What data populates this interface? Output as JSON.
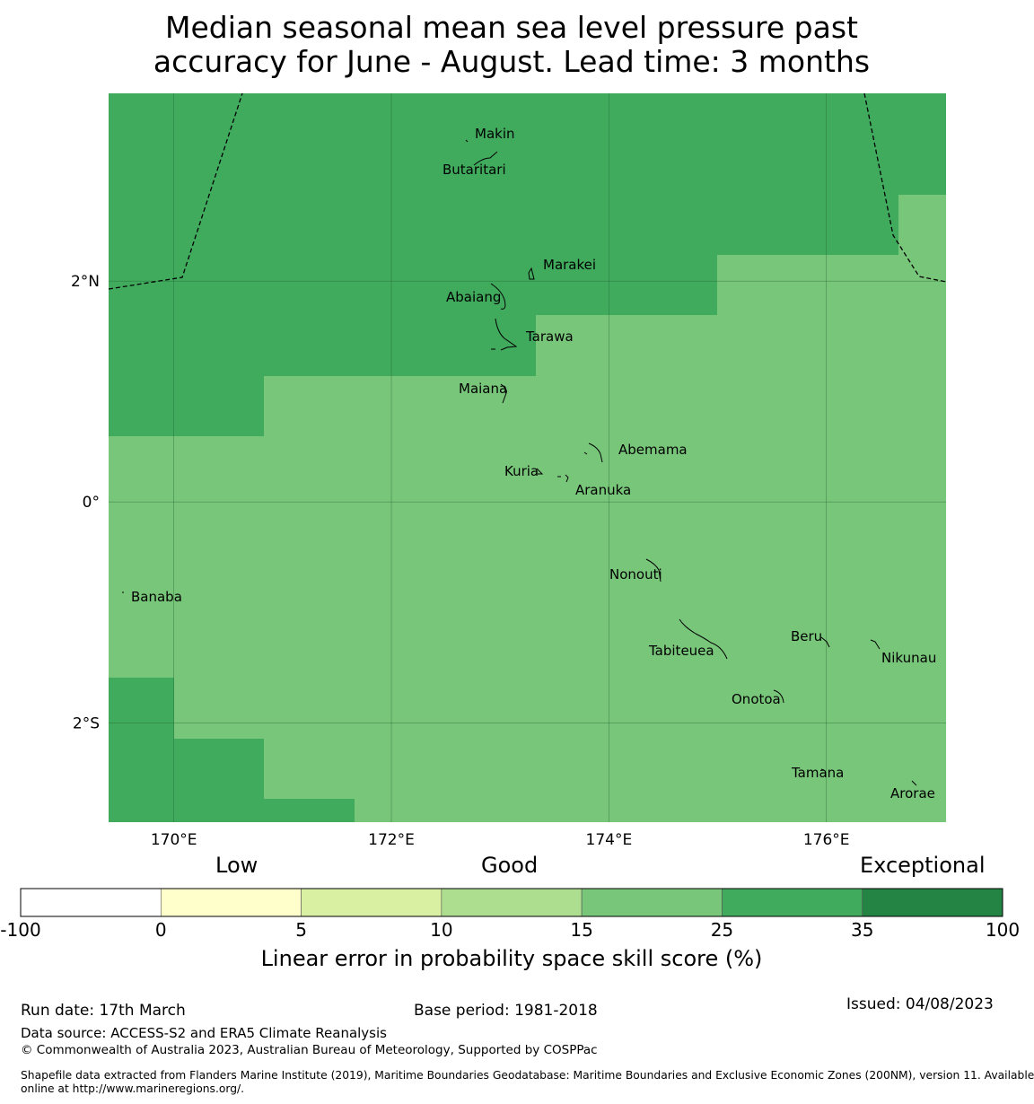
{
  "title": {
    "line1": "Median seasonal mean sea level pressure past",
    "line2": "accuracy for June - August. Lead time: 3 months"
  },
  "colors": {
    "good_dark": "#41ab5d",
    "good": "#78c679",
    "border": "#000000"
  },
  "map": {
    "lon_range": [
      169.4,
      177.1
    ],
    "lat_range": [
      -2.9,
      3.7
    ],
    "lon_ticks": [
      {
        "value": 170,
        "label": "170°E"
      },
      {
        "value": 172,
        "label": "172°E"
      },
      {
        "value": 174,
        "label": "174°E"
      },
      {
        "value": 176,
        "label": "176°E"
      }
    ],
    "lat_ticks": [
      {
        "value": 2,
        "label": "2°N"
      },
      {
        "value": 0,
        "label": "0°"
      },
      {
        "value": -2,
        "label": "2°S"
      }
    ],
    "places": [
      {
        "name": "Makin",
        "lon": 172.98,
        "lat": 3.37
      },
      {
        "name": "Butaritari",
        "lon": 172.79,
        "lat": 3.05
      },
      {
        "name": "Marakei",
        "lon": 173.29,
        "lat": 2.02
      },
      {
        "name": "Abaiang",
        "lon": 172.93,
        "lat": 1.8
      },
      {
        "name": "Tarawa",
        "lon": 173.03,
        "lat": 1.47
      },
      {
        "name": "Maiana",
        "lon": 173.0,
        "lat": 0.96
      },
      {
        "name": "Abemama",
        "lon": 173.86,
        "lat": 0.41
      },
      {
        "name": "Kuria",
        "lon": 173.4,
        "lat": 0.22
      },
      {
        "name": "Aranuka",
        "lon": 173.63,
        "lat": 0.16
      },
      {
        "name": "Banaba",
        "lon": 169.53,
        "lat": -0.87
      },
      {
        "name": "Nonouti",
        "lon": 174.38,
        "lat": -0.62
      },
      {
        "name": "Tabiteuea",
        "lon": 174.82,
        "lat": -1.35
      },
      {
        "name": "Beru",
        "lon": 176.0,
        "lat": -1.33
      },
      {
        "name": "Nikunau",
        "lon": 176.45,
        "lat": -1.38
      },
      {
        "name": "Onotoa",
        "lon": 175.56,
        "lat": -1.86
      },
      {
        "name": "Tamana",
        "lon": 175.98,
        "lat": -2.5
      },
      {
        "name": "Arorae",
        "lon": 176.82,
        "lat": -2.64
      }
    ]
  },
  "colorbar": {
    "categories": [
      "Low",
      "Good",
      "Exceptional"
    ],
    "bins": [
      {
        "from": -100,
        "to": 0,
        "color": "#ffffff"
      },
      {
        "from": 0,
        "to": 5,
        "color": "#ffffcc"
      },
      {
        "from": 5,
        "to": 10,
        "color": "#d9f0a3"
      },
      {
        "from": 10,
        "to": 15,
        "color": "#addd8e"
      },
      {
        "from": 15,
        "to": 25,
        "color": "#78c679"
      },
      {
        "from": 25,
        "to": 35,
        "color": "#41ab5d"
      },
      {
        "from": 35,
        "to": 100,
        "color": "#238443"
      }
    ],
    "ticks": [
      "-100",
      "0",
      "5",
      "10",
      "15",
      "25",
      "35",
      "100"
    ],
    "label": "Linear error in probability space skill score (%)"
  },
  "footer": {
    "run_date": "Run date: 17th March",
    "base_period": "Base period: 1981-2018",
    "issued": "Issued: 04/08/2023",
    "data_source": "Data source: ACCESS-S2 and ERA5 Climate Reanalysis",
    "copyright": "© Commonwealth of Australia 2023, Australian Bureau of Meteorology, Supported by COSPPac",
    "shapefile_line1": "Shapefile data extracted from Flanders Marine Institute (2019), Maritime Boundaries Geodatabase: Maritime Boundaries and Exclusive Economic Zones (200NM), version 11. Available",
    "shapefile_line2": "online at http://www.marineregions.org/."
  }
}
